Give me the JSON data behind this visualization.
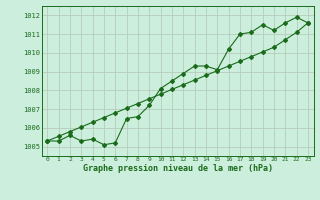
{
  "x": [
    0,
    1,
    2,
    3,
    4,
    5,
    6,
    7,
    8,
    9,
    10,
    11,
    12,
    13,
    14,
    15,
    16,
    17,
    18,
    19,
    20,
    21,
    22,
    23
  ],
  "y_line": [
    1005.3,
    1005.3,
    1005.6,
    1005.3,
    1005.4,
    1005.1,
    1005.2,
    1006.5,
    1006.6,
    1007.2,
    1008.1,
    1008.5,
    1008.9,
    1009.3,
    1009.3,
    1009.1,
    1010.2,
    1011.0,
    1011.1,
    1011.5,
    1011.2,
    1011.6,
    1011.9,
    1011.6
  ],
  "y_trend": [
    1005.3,
    1005.55,
    1005.8,
    1006.05,
    1006.3,
    1006.55,
    1006.8,
    1007.05,
    1007.3,
    1007.55,
    1007.8,
    1008.05,
    1008.3,
    1008.55,
    1008.8,
    1009.05,
    1009.3,
    1009.55,
    1009.8,
    1010.05,
    1010.3,
    1010.7,
    1011.1,
    1011.6
  ],
  "bg_color": "#cceedd",
  "line_color": "#1a6b1a",
  "grid_color": "#b8ccbb",
  "xlabel": "Graphe pression niveau de la mer (hPa)",
  "ylim": [
    1004.5,
    1012.5
  ],
  "xlim": [
    -0.5,
    23.5
  ],
  "yticks": [
    1005,
    1006,
    1007,
    1008,
    1009,
    1010,
    1011,
    1012
  ],
  "xticks": [
    0,
    1,
    2,
    3,
    4,
    5,
    6,
    7,
    8,
    9,
    10,
    11,
    12,
    13,
    14,
    15,
    16,
    17,
    18,
    19,
    20,
    21,
    22,
    23
  ],
  "marker_size": 2.0,
  "line_width": 0.8
}
